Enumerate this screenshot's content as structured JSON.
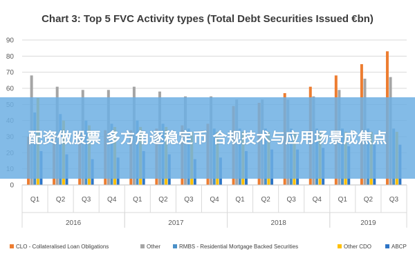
{
  "chart_data": {
    "type": "bar",
    "title": "Chart 3: Top 5 FVC Activity types (Total Debt Securities Issued €bn)",
    "xlabel": "",
    "ylabel": "",
    "ylim": [
      0,
      90
    ],
    "yticks": [
      0,
      10,
      20,
      30,
      40,
      50,
      60,
      70,
      80,
      90
    ],
    "grid": true,
    "legend": "bottom",
    "categories": [
      "Q1",
      "Q2",
      "Q3",
      "Q4",
      "Q1",
      "Q2",
      "Q3",
      "Q4",
      "Q1",
      "Q2",
      "Q3",
      "Q4",
      "Q1",
      "Q2",
      "Q3"
    ],
    "groups": [
      {
        "label": "2016",
        "span": [
          0,
          3
        ]
      },
      {
        "label": "2017",
        "span": [
          4,
          7
        ]
      },
      {
        "label": "2018",
        "span": [
          8,
          11
        ]
      },
      {
        "label": "2019",
        "span": [
          12,
          14
        ]
      }
    ],
    "series": [
      {
        "name": "CLO - Collateralised Loan Obligations",
        "color": "#ed7d31",
        "values": [
          30,
          31,
          33,
          34,
          34,
          35,
          37,
          38,
          49,
          51,
          57,
          61,
          68,
          75,
          83
        ]
      },
      {
        "name": "Other",
        "color": "#a5a5a5",
        "values": [
          68,
          61,
          59,
          59,
          61,
          58,
          55,
          55,
          53,
          53,
          53,
          55,
          59,
          66,
          67
        ]
      },
      {
        "name": "RMBS - Residential Mortgage Backed Securities",
        "color": "#4a90c8",
        "values": [
          45,
          44,
          40,
          38,
          40,
          38,
          35,
          35,
          35,
          35,
          35,
          35,
          35,
          35,
          35
        ]
      },
      {
        "name": "Other CDO",
        "color": "#ffc000",
        "values": [
          54,
          40,
          37,
          36,
          36,
          36,
          33,
          33,
          33,
          33,
          33,
          33,
          33,
          33,
          33
        ]
      },
      {
        "name": "ABCP",
        "color": "#2e75c6",
        "values": [
          21,
          19,
          16,
          17,
          21,
          19,
          16,
          17,
          21,
          22,
          22,
          23,
          24,
          25,
          25
        ]
      }
    ]
  },
  "overlay": {
    "text": "配资做股票 多方角逐稳定币 合规技术与应用场景成焦点"
  }
}
